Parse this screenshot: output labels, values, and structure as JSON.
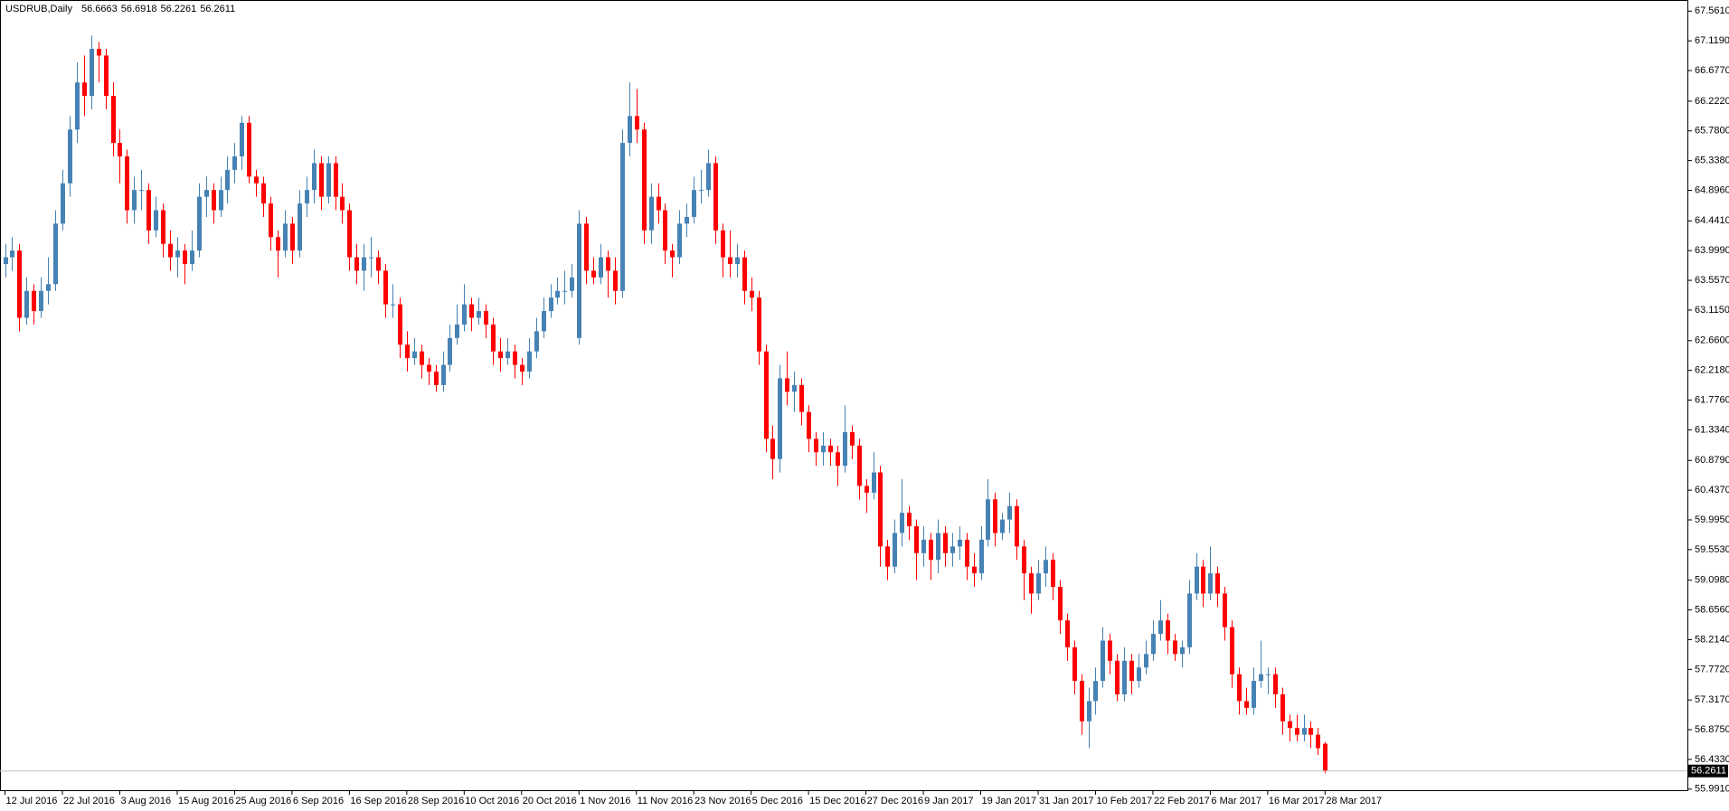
{
  "chart_data": {
    "type": "candlestick",
    "title": "USDRUB,Daily",
    "up_color": "#4682b4",
    "down_color": "#ff0000",
    "ylim": [
      55.975,
      67.726
    ],
    "xlim": [
      -0.7,
      234.5
    ],
    "yticks": [
      {
        "value": 67.561,
        "label": "67.5610"
      },
      {
        "value": 67.119,
        "label": "67.1190"
      },
      {
        "value": 66.677,
        "label": "66.6770"
      },
      {
        "value": 66.222,
        "label": "66.2220"
      },
      {
        "value": 65.78,
        "label": "65.7800"
      },
      {
        "value": 65.338,
        "label": "65.3380"
      },
      {
        "value": 64.896,
        "label": "64.8960"
      },
      {
        "value": 64.441,
        "label": "64.4410"
      },
      {
        "value": 63.999,
        "label": "63.9990"
      },
      {
        "value": 63.557,
        "label": "63.5570"
      },
      {
        "value": 63.115,
        "label": "63.1150"
      },
      {
        "value": 62.66,
        "label": "62.6600"
      },
      {
        "value": 62.218,
        "label": "62.2180"
      },
      {
        "value": 61.776,
        "label": "61.7760"
      },
      {
        "value": 61.334,
        "label": "61.3340"
      },
      {
        "value": 60.879,
        "label": "60.8790"
      },
      {
        "value": 60.437,
        "label": "60.4370"
      },
      {
        "value": 59.995,
        "label": "59.9950"
      },
      {
        "value": 59.553,
        "label": "59.5530"
      },
      {
        "value": 59.098,
        "label": "59.0980"
      },
      {
        "value": 58.656,
        "label": "58.6560"
      },
      {
        "value": 58.214,
        "label": "58.2140"
      },
      {
        "value": 57.772,
        "label": "57.7720"
      },
      {
        "value": 57.317,
        "label": "57.3170"
      },
      {
        "value": 56.875,
        "label": "56.8750"
      },
      {
        "value": 56.433,
        "label": "56.4330"
      },
      {
        "value": 55.991,
        "label": "55.9910"
      }
    ],
    "xticks": [
      {
        "value": 0,
        "label": "12 Jul 2016"
      },
      {
        "value": 8,
        "label": "22 Jul 2016"
      },
      {
        "value": 16,
        "label": "3 Aug 2016"
      },
      {
        "value": 24,
        "label": "15 Aug 2016"
      },
      {
        "value": 32,
        "label": "25 Aug 2016"
      },
      {
        "value": 40,
        "label": "6 Sep 2016"
      },
      {
        "value": 48,
        "label": "16 Sep 2016"
      },
      {
        "value": 56,
        "label": "28 Sep 2016"
      },
      {
        "value": 64,
        "label": "10 Oct 2016"
      },
      {
        "value": 72,
        "label": "20 Oct 2016"
      },
      {
        "value": 80,
        "label": "1 Nov 2016"
      },
      {
        "value": 88,
        "label": "11 Nov 2016"
      },
      {
        "value": 96,
        "label": "23 Nov 2016"
      },
      {
        "value": 104,
        "label": "5 Dec 2016"
      },
      {
        "value": 112,
        "label": "15 Dec 2016"
      },
      {
        "value": 120,
        "label": "27 Dec 2016"
      },
      {
        "value": 128,
        "label": "9 Jan 2017"
      },
      {
        "value": 136,
        "label": "19 Jan 2017"
      },
      {
        "value": 144,
        "label": "31 Jan 2017"
      },
      {
        "value": 152,
        "label": "10 Feb 2017"
      },
      {
        "value": 160,
        "label": "22 Feb 2017"
      },
      {
        "value": 168,
        "label": "6 Mar 2017"
      },
      {
        "value": 176,
        "label": "16 Mar 2017"
      },
      {
        "value": 184,
        "label": "28 Mar 2017"
      }
    ],
    "ohlc": [
      [
        63.8,
        64.1,
        63.6,
        63.9
      ],
      [
        63.9,
        64.2,
        63.7,
        64.0
      ],
      [
        64.0,
        64.1,
        62.8,
        63.0
      ],
      [
        63.0,
        63.6,
        62.9,
        63.4
      ],
      [
        63.4,
        63.5,
        62.9,
        63.1
      ],
      [
        63.1,
        63.6,
        63.0,
        63.4
      ],
      [
        63.4,
        63.9,
        63.2,
        63.5
      ],
      [
        63.5,
        64.6,
        63.4,
        64.4
      ],
      [
        64.4,
        65.2,
        64.3,
        65.0
      ],
      [
        65.0,
        66.0,
        64.8,
        65.8
      ],
      [
        65.8,
        66.8,
        65.6,
        66.5
      ],
      [
        66.5,
        66.9,
        66.0,
        66.3
      ],
      [
        66.3,
        67.2,
        66.1,
        67.0
      ],
      [
        67.0,
        67.1,
        66.5,
        66.9
      ],
      [
        66.9,
        67.0,
        66.1,
        66.3
      ],
      [
        66.3,
        66.5,
        65.4,
        65.6
      ],
      [
        65.6,
        65.8,
        65.0,
        65.4
      ],
      [
        65.4,
        65.5,
        64.4,
        64.6
      ],
      [
        64.6,
        65.1,
        64.4,
        64.9
      ],
      [
        64.9,
        65.2,
        64.6,
        64.9
      ],
      [
        64.9,
        65.0,
        64.1,
        64.3
      ],
      [
        64.3,
        64.8,
        64.2,
        64.6
      ],
      [
        64.6,
        64.7,
        63.9,
        64.1
      ],
      [
        64.1,
        64.3,
        63.7,
        63.9
      ],
      [
        63.9,
        64.2,
        63.6,
        64.0
      ],
      [
        64.0,
        64.1,
        63.5,
        63.8
      ],
      [
        63.8,
        64.3,
        63.7,
        64.0
      ],
      [
        64.0,
        65.0,
        63.9,
        64.8
      ],
      [
        64.8,
        65.1,
        64.5,
        64.9
      ],
      [
        64.9,
        65.0,
        64.4,
        64.6
      ],
      [
        64.6,
        65.1,
        64.5,
        64.9
      ],
      [
        64.9,
        65.4,
        64.7,
        65.2
      ],
      [
        65.2,
        65.6,
        65.0,
        65.4
      ],
      [
        65.4,
        66.0,
        65.2,
        65.9
      ],
      [
        65.9,
        66.0,
        65.0,
        65.1
      ],
      [
        65.1,
        65.2,
        64.8,
        65.0
      ],
      [
        65.0,
        65.1,
        64.5,
        64.7
      ],
      [
        64.7,
        64.8,
        64.0,
        64.2
      ],
      [
        64.2,
        64.3,
        63.6,
        64.0
      ],
      [
        64.0,
        64.6,
        63.9,
        64.4
      ],
      [
        64.4,
        64.5,
        63.8,
        64.0
      ],
      [
        64.0,
        64.9,
        63.9,
        64.7
      ],
      [
        64.7,
        65.1,
        64.5,
        64.9
      ],
      [
        64.9,
        65.5,
        64.7,
        65.3
      ],
      [
        65.3,
        65.4,
        64.6,
        64.8
      ],
      [
        64.8,
        65.4,
        64.7,
        65.3
      ],
      [
        65.3,
        65.4,
        64.6,
        64.8
      ],
      [
        64.8,
        65.0,
        64.4,
        64.6
      ],
      [
        64.6,
        64.7,
        63.7,
        63.9
      ],
      [
        63.9,
        64.1,
        63.5,
        63.7
      ],
      [
        63.7,
        64.1,
        63.4,
        63.9
      ],
      [
        63.9,
        64.2,
        63.6,
        63.9
      ],
      [
        63.9,
        64.0,
        63.5,
        63.7
      ],
      [
        63.7,
        63.8,
        63.0,
        63.2
      ],
      [
        63.2,
        63.5,
        63.0,
        63.2
      ],
      [
        63.2,
        63.3,
        62.4,
        62.6
      ],
      [
        62.6,
        62.8,
        62.2,
        62.4
      ],
      [
        62.4,
        62.7,
        62.3,
        62.5
      ],
      [
        62.5,
        62.6,
        62.1,
        62.3
      ],
      [
        62.3,
        62.4,
        62.0,
        62.2
      ],
      [
        62.2,
        62.3,
        61.9,
        62.0
      ],
      [
        62.0,
        62.5,
        61.9,
        62.3
      ],
      [
        62.3,
        62.9,
        62.2,
        62.7
      ],
      [
        62.7,
        63.2,
        62.6,
        62.9
      ],
      [
        62.9,
        63.5,
        62.8,
        63.2
      ],
      [
        63.2,
        63.3,
        62.8,
        63.0
      ],
      [
        63.0,
        63.3,
        62.9,
        63.1
      ],
      [
        63.1,
        63.2,
        62.7,
        62.9
      ],
      [
        62.9,
        63.0,
        62.3,
        62.5
      ],
      [
        62.5,
        62.7,
        62.2,
        62.4
      ],
      [
        62.4,
        62.7,
        62.3,
        62.5
      ],
      [
        62.5,
        62.6,
        62.1,
        62.3
      ],
      [
        62.3,
        62.4,
        62.0,
        62.2
      ],
      [
        62.2,
        62.7,
        62.1,
        62.5
      ],
      [
        62.5,
        63.0,
        62.4,
        62.8
      ],
      [
        62.8,
        63.3,
        62.7,
        63.1
      ],
      [
        63.1,
        63.5,
        63.0,
        63.3
      ],
      [
        63.3,
        63.6,
        63.2,
        63.4
      ],
      [
        63.4,
        63.7,
        63.2,
        63.4
      ],
      [
        63.4,
        63.8,
        63.3,
        63.6
      ],
      [
        62.7,
        64.6,
        62.6,
        64.4
      ],
      [
        64.4,
        64.5,
        63.5,
        63.7
      ],
      [
        63.7,
        63.9,
        63.5,
        63.6
      ],
      [
        63.6,
        64.1,
        63.5,
        63.9
      ],
      [
        63.9,
        64.0,
        63.3,
        63.7
      ],
      [
        63.7,
        63.9,
        63.2,
        63.4
      ],
      [
        63.4,
        65.8,
        63.3,
        65.6
      ],
      [
        65.6,
        66.5,
        65.4,
        66.0
      ],
      [
        66.0,
        66.4,
        65.6,
        65.8
      ],
      [
        65.8,
        65.9,
        64.1,
        64.3
      ],
      [
        64.3,
        65.0,
        64.1,
        64.8
      ],
      [
        64.8,
        65.0,
        64.4,
        64.6
      ],
      [
        64.6,
        64.7,
        63.8,
        64.0
      ],
      [
        64.0,
        64.1,
        63.6,
        63.9
      ],
      [
        63.9,
        64.6,
        63.8,
        64.4
      ],
      [
        64.4,
        64.7,
        64.2,
        64.5
      ],
      [
        64.5,
        65.1,
        64.4,
        64.9
      ],
      [
        64.9,
        65.2,
        64.7,
        64.9
      ],
      [
        64.9,
        65.5,
        64.8,
        65.3
      ],
      [
        65.3,
        65.4,
        64.1,
        64.3
      ],
      [
        64.3,
        64.4,
        63.6,
        63.9
      ],
      [
        63.9,
        64.3,
        63.6,
        63.8
      ],
      [
        63.8,
        64.1,
        63.6,
        63.9
      ],
      [
        63.9,
        64.0,
        63.2,
        63.4
      ],
      [
        63.4,
        63.6,
        63.1,
        63.3
      ],
      [
        63.3,
        63.4,
        62.3,
        62.5
      ],
      [
        62.5,
        62.6,
        61.0,
        61.2
      ],
      [
        61.2,
        61.4,
        60.6,
        60.9
      ],
      [
        60.9,
        62.3,
        60.7,
        62.1
      ],
      [
        62.1,
        62.5,
        61.7,
        61.9
      ],
      [
        61.9,
        62.2,
        61.6,
        62.0
      ],
      [
        62.0,
        62.1,
        61.4,
        61.6
      ],
      [
        61.6,
        61.7,
        61.0,
        61.2
      ],
      [
        61.2,
        61.3,
        60.8,
        61.0
      ],
      [
        61.0,
        61.3,
        60.8,
        61.1
      ],
      [
        61.1,
        61.2,
        60.8,
        61.0
      ],
      [
        61.0,
        61.1,
        60.5,
        60.8
      ],
      [
        60.8,
        61.7,
        60.7,
        61.3
      ],
      [
        61.3,
        61.4,
        60.9,
        61.1
      ],
      [
        61.1,
        61.2,
        60.3,
        60.5
      ],
      [
        60.5,
        60.6,
        60.1,
        60.4
      ],
      [
        60.4,
        61.0,
        60.3,
        60.7
      ],
      [
        60.7,
        60.8,
        59.3,
        59.6
      ],
      [
        59.6,
        59.7,
        59.1,
        59.3
      ],
      [
        59.3,
        60.0,
        59.2,
        59.8
      ],
      [
        59.8,
        60.6,
        59.6,
        60.1
      ],
      [
        60.1,
        60.2,
        59.7,
        59.9
      ],
      [
        59.9,
        60.0,
        59.1,
        59.5
      ],
      [
        59.5,
        59.9,
        59.3,
        59.7
      ],
      [
        59.7,
        59.8,
        59.1,
        59.4
      ],
      [
        59.4,
        60.0,
        59.2,
        59.8
      ],
      [
        59.8,
        59.9,
        59.3,
        59.5
      ],
      [
        59.5,
        59.8,
        59.3,
        59.6
      ],
      [
        59.6,
        59.9,
        59.4,
        59.7
      ],
      [
        59.7,
        59.8,
        59.1,
        59.3
      ],
      [
        59.3,
        59.5,
        59.0,
        59.2
      ],
      [
        59.2,
        59.9,
        59.1,
        59.7
      ],
      [
        59.7,
        60.6,
        59.6,
        60.3
      ],
      [
        60.3,
        60.4,
        59.6,
        59.8
      ],
      [
        59.8,
        60.1,
        59.7,
        60.0
      ],
      [
        60.0,
        60.4,
        59.8,
        60.2
      ],
      [
        60.2,
        60.3,
        59.4,
        59.6
      ],
      [
        59.6,
        59.7,
        58.8,
        59.2
      ],
      [
        59.2,
        59.3,
        58.6,
        58.9
      ],
      [
        58.9,
        59.4,
        58.8,
        59.2
      ],
      [
        59.2,
        59.6,
        59.0,
        59.4
      ],
      [
        59.4,
        59.5,
        58.8,
        59.0
      ],
      [
        59.0,
        59.1,
        58.3,
        58.5
      ],
      [
        58.5,
        58.6,
        57.9,
        58.1
      ],
      [
        58.1,
        58.2,
        57.4,
        57.6
      ],
      [
        57.6,
        57.7,
        56.8,
        57.0
      ],
      [
        57.0,
        57.5,
        56.6,
        57.3
      ],
      [
        57.3,
        57.8,
        57.1,
        57.6
      ],
      [
        57.6,
        58.4,
        57.5,
        58.2
      ],
      [
        58.2,
        58.3,
        57.7,
        57.9
      ],
      [
        57.9,
        58.0,
        57.3,
        57.4
      ],
      [
        57.4,
        58.1,
        57.3,
        57.9
      ],
      [
        57.9,
        58.0,
        57.4,
        57.6
      ],
      [
        57.6,
        58.0,
        57.5,
        57.8
      ],
      [
        57.8,
        58.2,
        57.7,
        58.0
      ],
      [
        58.0,
        58.5,
        57.9,
        58.3
      ],
      [
        58.3,
        58.8,
        58.2,
        58.5
      ],
      [
        58.5,
        58.6,
        58.0,
        58.2
      ],
      [
        58.2,
        58.3,
        57.9,
        58.0
      ],
      [
        58.0,
        58.2,
        57.8,
        58.1
      ],
      [
        58.1,
        59.1,
        58.0,
        58.9
      ],
      [
        58.9,
        59.5,
        58.8,
        59.3
      ],
      [
        59.3,
        59.4,
        58.7,
        58.9
      ],
      [
        58.9,
        59.6,
        58.8,
        59.2
      ],
      [
        59.2,
        59.3,
        58.7,
        58.9
      ],
      [
        58.9,
        59.0,
        58.2,
        58.4
      ],
      [
        58.4,
        58.5,
        57.5,
        57.7
      ],
      [
        57.7,
        57.8,
        57.1,
        57.3
      ],
      [
        57.3,
        57.5,
        57.1,
        57.2
      ],
      [
        57.2,
        57.8,
        57.1,
        57.6
      ],
      [
        57.6,
        58.2,
        57.5,
        57.7
      ],
      [
        57.7,
        57.8,
        57.4,
        57.7
      ],
      [
        57.7,
        57.8,
        57.2,
        57.4
      ],
      [
        57.4,
        57.5,
        56.8,
        57.0
      ],
      [
        57.0,
        57.1,
        56.7,
        56.9
      ],
      [
        56.9,
        57.1,
        56.7,
        56.8
      ],
      [
        56.8,
        57.1,
        56.7,
        56.9
      ],
      [
        56.9,
        57.0,
        56.6,
        56.8
      ],
      [
        56.8,
        56.9,
        56.5,
        56.6
      ],
      [
        56.6663,
        56.6918,
        56.2261,
        56.2611
      ]
    ]
  }
}
